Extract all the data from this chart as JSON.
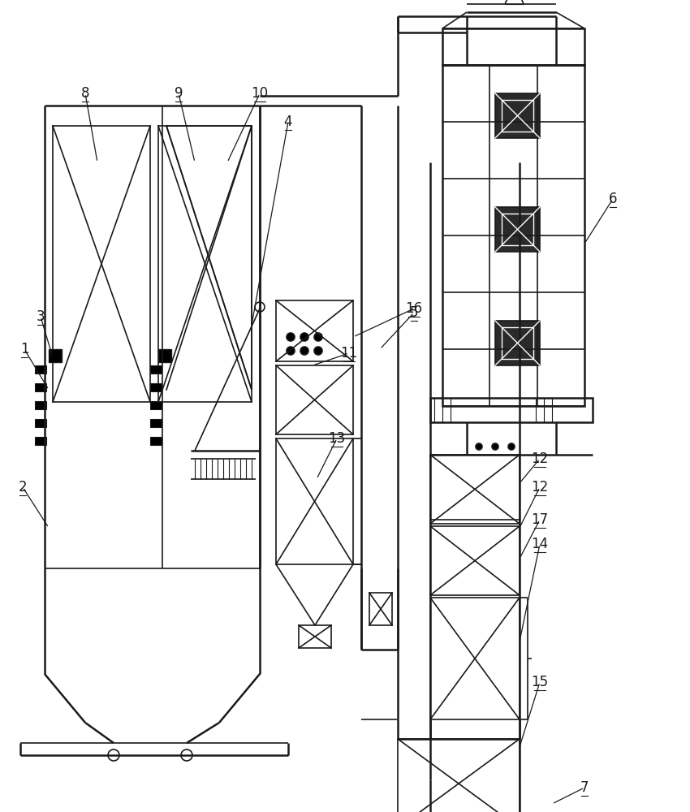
{
  "bg_color": "#ffffff",
  "line_color": "#1a1a1a",
  "lw_thin": 0.8,
  "lw_med": 1.2,
  "lw_thick": 1.8,
  "figw": 8.5,
  "figh": 10.0,
  "dpi": 100
}
